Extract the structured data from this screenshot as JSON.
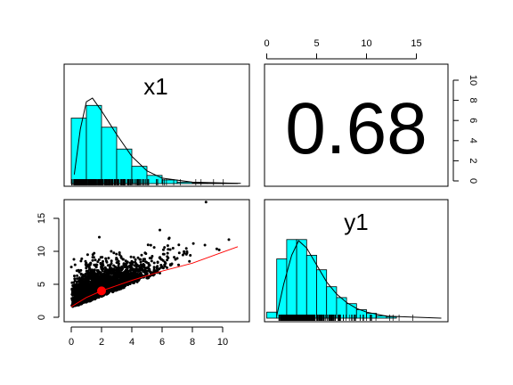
{
  "chart_data": [
    {
      "type": "histogram",
      "title": "x1",
      "bins": [
        0,
        1,
        2,
        3,
        4,
        5,
        6,
        7,
        8,
        9,
        10,
        11
      ],
      "values": [
        0.36,
        0.43,
        0.31,
        0.19,
        0.095,
        0.045,
        0.02,
        0.008,
        0.004,
        0.002,
        0.001
      ],
      "density_curve": {
        "x": [
          0.2,
          0.6,
          1.0,
          1.4,
          2.0,
          3.0,
          4.0,
          5.0,
          6.0,
          8.0,
          11.2
        ],
        "y": [
          0.05,
          0.3,
          0.45,
          0.47,
          0.4,
          0.27,
          0.15,
          0.07,
          0.03,
          0.008,
          0.001
        ]
      },
      "rug": true,
      "colors": {
        "bars": "#00FFFF",
        "outline": "#000000"
      }
    },
    {
      "type": "text",
      "text": "0.68",
      "x_ticks": [
        "0",
        "5",
        "10",
        "15"
      ],
      "y_ticks": [
        "0",
        "2",
        "4",
        "6",
        "8",
        "10"
      ]
    },
    {
      "type": "scatter",
      "xlim": [
        0,
        11.5
      ],
      "ylim": [
        0,
        18
      ],
      "x_ticks": [
        "0",
        "2",
        "4",
        "6",
        "8",
        "10"
      ],
      "y_ticks": [
        "0",
        "5",
        "10",
        "15"
      ],
      "mean_point": {
        "x": 2.0,
        "y": 4.0
      },
      "fit_line": {
        "x": [
          0.0,
          1.0,
          2.0,
          4.0,
          6.0,
          8.0,
          11.0
        ],
        "y": [
          1.6,
          3.0,
          4.0,
          5.6,
          7.0,
          8.2,
          10.7
        ]
      },
      "colors": {
        "points": "#000000",
        "fit": "#FF0000",
        "mean": "#FF0000"
      }
    },
    {
      "type": "histogram",
      "title": "y1",
      "bins": [
        0,
        1,
        2,
        3,
        4,
        5,
        6,
        7,
        8,
        9,
        10,
        11,
        12,
        13
      ],
      "values": [
        0.025,
        0.245,
        0.325,
        0.325,
        0.26,
        0.2,
        0.13,
        0.085,
        0.06,
        0.035,
        0.02,
        0.01,
        0.006
      ],
      "density_curve": {
        "x": [
          1.0,
          1.7,
          2.5,
          3.2,
          4.0,
          5.0,
          6.0,
          7.0,
          8.0,
          9.0,
          10.0,
          12.0,
          17.5
        ],
        "y": [
          0.01,
          0.14,
          0.26,
          0.32,
          0.29,
          0.22,
          0.15,
          0.1,
          0.065,
          0.04,
          0.025,
          0.008,
          0.0
        ]
      },
      "rug": true,
      "colors": {
        "bars": "#00FFFF",
        "outline": "#000000"
      }
    }
  ]
}
